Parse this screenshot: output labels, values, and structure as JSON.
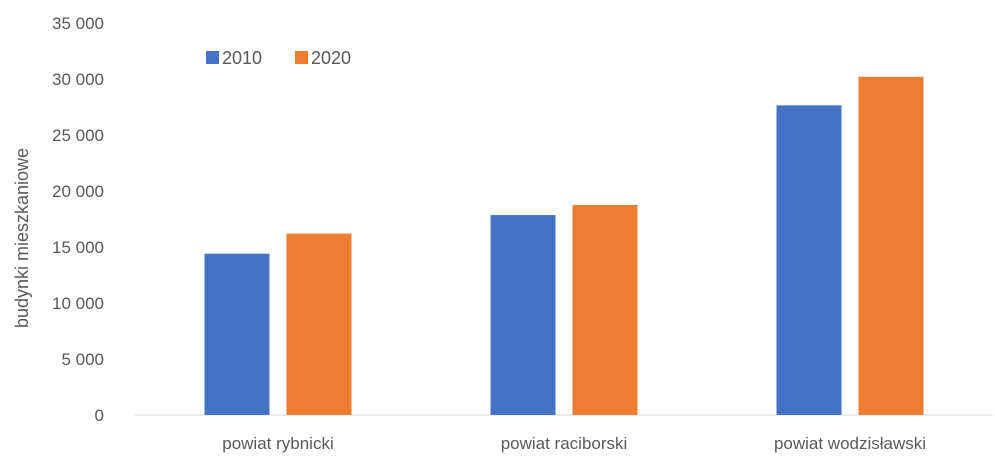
{
  "chart_data": {
    "type": "bar",
    "title": "",
    "xlabel": "",
    "ylabel": "budynki mieszkaniowe",
    "categories": [
      "powiat rybnicki",
      "powiat raciborski",
      "powiat wodzisławski"
    ],
    "series": [
      {
        "name": "2010",
        "color": "#4472C4",
        "values": [
          14400,
          17850,
          27650
        ]
      },
      {
        "name": "2020",
        "color": "#ED7D31",
        "values": [
          16200,
          18750,
          30200
        ]
      }
    ],
    "ylim": [
      0,
      35000
    ],
    "yticks": [
      0,
      5000,
      10000,
      15000,
      20000,
      25000,
      30000,
      35000
    ],
    "ytick_labels": [
      "0",
      "5 000",
      "10 000",
      "15 000",
      "20 000",
      "25 000",
      "30 000",
      "35 000"
    ],
    "grid": false,
    "legend_position": "top-left"
  }
}
